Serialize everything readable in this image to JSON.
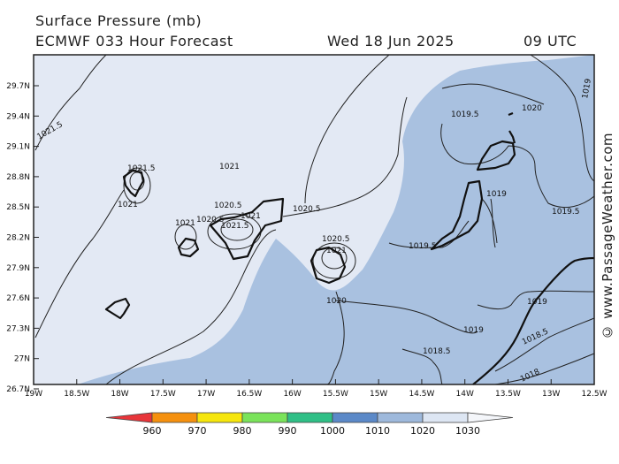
{
  "header": {
    "title": "Surface Pressure (mb)",
    "model": "ECMWF 033 Hour Forecast",
    "date": "Wed 18 Jun 2025",
    "time": "09 UTC"
  },
  "credit": "© www.PassageWeather.com",
  "axes": {
    "lat_labels": [
      "29.7N",
      "29.4N",
      "29.1N",
      "28.8N",
      "28.5N",
      "28.2N",
      "27.9N",
      "27.6N",
      "27.3N",
      "27N",
      "26.7N"
    ],
    "lon_labels": [
      "19W",
      "18.5W",
      "18W",
      "17.5W",
      "17W",
      "16.5W",
      "16W",
      "15.5W",
      "15W",
      "14.5W",
      "14W",
      "13.5W",
      "13W",
      "12.5W"
    ]
  },
  "contour_labels": [
    "1021.5",
    "1021.5",
    "1021",
    "1021",
    "1021",
    "1020.5",
    "1020.5",
    "1021",
    "1021.5",
    "1020.5",
    "1020.5",
    "1021",
    "1020",
    "1019.5",
    "1020",
    "1019",
    "1019.5",
    "1019.5",
    "1019",
    "1019",
    "1018.5",
    "1018.5",
    "1018",
    "1019"
  ],
  "legend": {
    "labels": [
      "960",
      "970",
      "980",
      "990",
      "1000",
      "1010",
      "1020",
      "1030"
    ],
    "colors": [
      "#e8353a",
      "#f5900e",
      "#f6e60c",
      "#7ae35a",
      "#2fbf86",
      "#5b89c8",
      "#9eb9dc",
      "#dde6f3"
    ]
  },
  "colors": {
    "band_1020_1030": "#e3e9f4",
    "band_1010_1020": "#a9c1e0",
    "coast": "#111111",
    "isobar": "#222222"
  }
}
